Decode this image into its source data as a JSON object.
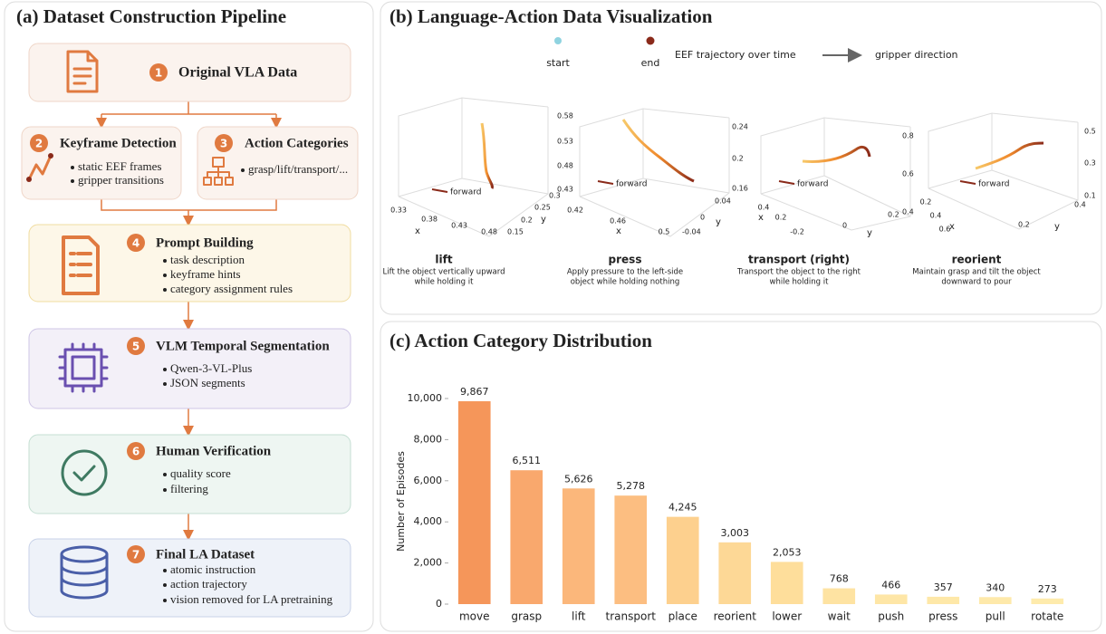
{
  "pipeline": {
    "title": "(a) Dataset Construction Pipeline",
    "steps": [
      {
        "number": "1",
        "title": "Original VLA Data",
        "items": []
      },
      {
        "number": "2",
        "title": "Keyframe Detection",
        "items": [
          "static EEF frames",
          "gripper transitions"
        ]
      },
      {
        "number": "3",
        "title": "Action Categories",
        "items": [
          "grasp/lift/transport/..."
        ]
      },
      {
        "number": "4",
        "title": "Prompt Building",
        "items": [
          "task description",
          "keyframe hints",
          "category assignment rules"
        ]
      },
      {
        "number": "5",
        "title": "VLM Temporal Segmentation",
        "items": [
          "Qwen-3-VL-Plus",
          "JSON segments"
        ]
      },
      {
        "number": "6",
        "title": "Human Verification",
        "items": [
          "quality score",
          "filtering"
        ]
      },
      {
        "number": "7",
        "title": "Final LA Dataset",
        "items": [
          "atomic instruction",
          "action trajectory",
          "vision removed for LA pretraining"
        ]
      }
    ]
  },
  "visualization": {
    "title": "(b) Language-Action Data Visualization",
    "legend": {
      "start": "start",
      "end": "end",
      "trajectory": "EEF trajectory over time",
      "direction": "gripper direction"
    },
    "plots": [
      {
        "name": "lift",
        "description": [
          "Lift the object vertically upward",
          "while holding it"
        ],
        "forward": "forward",
        "x_label": "x",
        "y_label": "y",
        "z_ticks": [
          "0.58",
          "0.53",
          "0.48",
          "0.43"
        ],
        "x_ticks": [
          "0.33",
          "0.38",
          "0.43",
          "0.48"
        ],
        "y_ticks": [
          "0.15",
          "0.2",
          "0.25",
          "0.3"
        ]
      },
      {
        "name": "press",
        "description": [
          "Apply pressure to the left-side",
          "object while holding nothing"
        ],
        "forward": "forward",
        "x_label": "x",
        "y_label": "y",
        "z_ticks": [
          "0.24",
          "0.2",
          "0.16"
        ],
        "x_ticks": [
          "0.42",
          "0.46",
          "0.5"
        ],
        "y_ticks": [
          "-0.04",
          "0",
          "0.04"
        ]
      },
      {
        "name": "transport (right)",
        "description": [
          "Transport the object to the right",
          "while holding it"
        ],
        "forward": "forward",
        "x_label": "x",
        "y_label": "y",
        "z_ticks": [
          "0.8",
          "0.6",
          "0.4"
        ],
        "x_ticks": [
          "0.4",
          "0.2",
          "-0.2"
        ],
        "y_ticks": [
          "0",
          "0.2"
        ]
      },
      {
        "name": "reorient",
        "description": [
          "Maintain grasp and tilt the object",
          "downward to pour"
        ],
        "forward": "forward",
        "x_label": "x",
        "y_label": "y",
        "z_ticks": [
          "0.5",
          "0.3",
          "0.1"
        ],
        "x_ticks": [
          "0.2",
          "0.4",
          "0.6"
        ],
        "y_ticks": [
          "0.2",
          "0.4"
        ]
      }
    ]
  },
  "chart_data": {
    "type": "bar",
    "title": "(c) Action Category Distribution",
    "y_label": "Number of Episodes",
    "categories": [
      "move",
      "grasp",
      "lift",
      "transport",
      "place",
      "reorient",
      "lower",
      "wait",
      "push",
      "press",
      "pull",
      "rotate"
    ],
    "values": [
      9867,
      6511,
      5626,
      5278,
      4245,
      3003,
      2053,
      768,
      466,
      357,
      340,
      273
    ],
    "value_labels": [
      "9,867",
      "6,511",
      "5,626",
      "5,278",
      "4,245",
      "3,003",
      "2,053",
      "768",
      "466",
      "357",
      "340",
      "273"
    ],
    "colors": [
      "#f5965a",
      "#f9a86d",
      "#fbb77b",
      "#fcbe81",
      "#fdd08e",
      "#fdd896",
      "#fede9b",
      "#fee3a2",
      "#fee6a6",
      "#fee8a8",
      "#fee9aa",
      "#feebac"
    ],
    "ylim": [
      0,
      10000
    ],
    "yticks": [
      0,
      {
        "value": 2000,
        "label": "2,000"
      },
      {
        "value": 4000,
        "label": "4,000"
      },
      {
        "value": 6000,
        "label": "6,000"
      },
      {
        "value": 8000,
        "label": "8,000"
      },
      {
        "value": 10000,
        "label": "10,000"
      }
    ]
  }
}
